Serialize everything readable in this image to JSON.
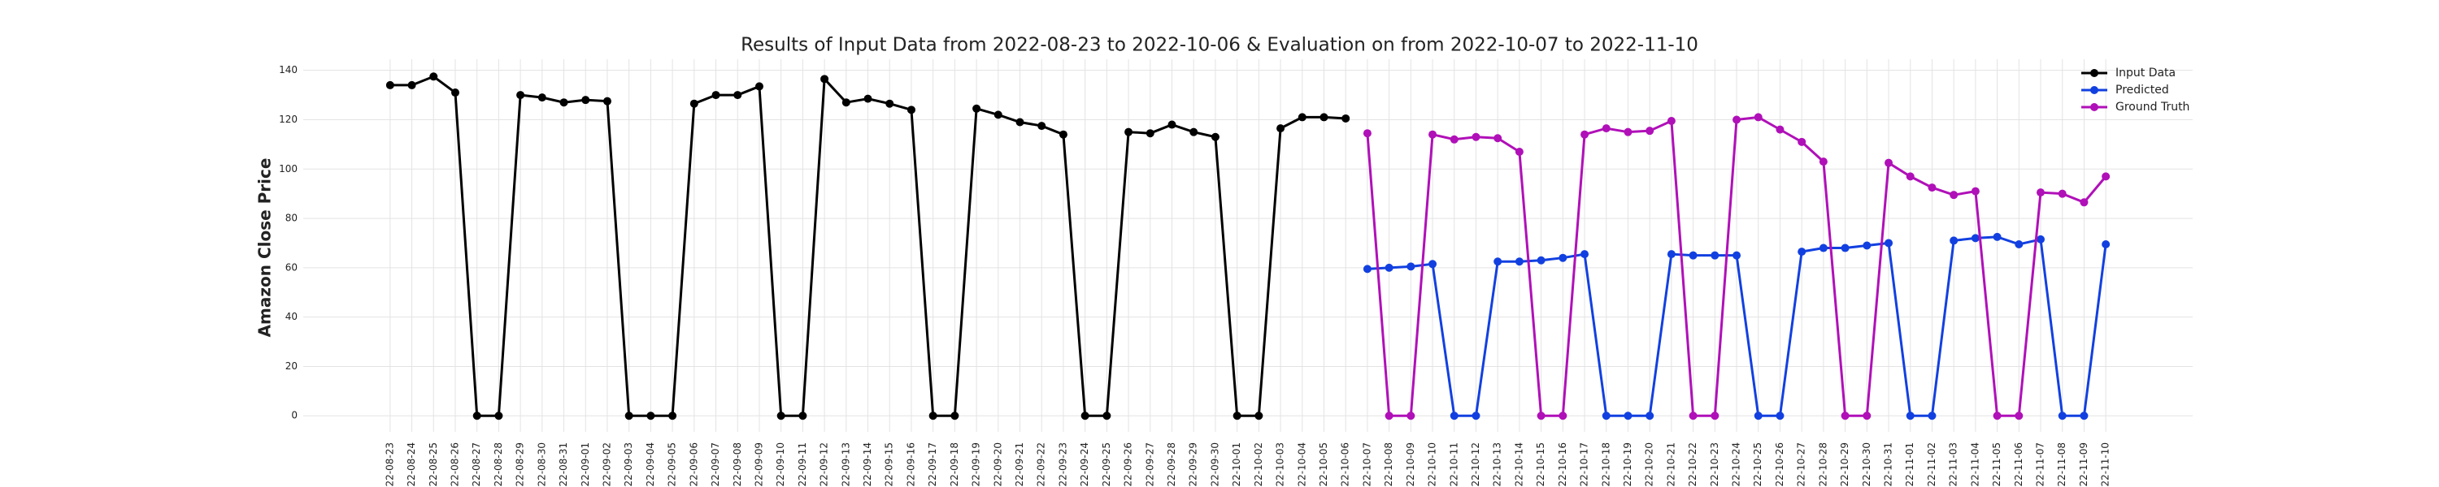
{
  "chart_data": {
    "type": "line",
    "title": "Results of Input Data from 2022-08-23 to 2022-10-06 & Evaluation on from 2022-10-07 to 2022-11-10",
    "y_label": "Amazon Close Price",
    "x": [
      "2022-08-23",
      "2022-08-24",
      "2022-08-25",
      "2022-08-26",
      "2022-08-27",
      "2022-08-28",
      "2022-08-29",
      "2022-08-30",
      "2022-08-31",
      "2022-09-01",
      "2022-09-02",
      "2022-09-03",
      "2022-09-04",
      "2022-09-05",
      "2022-09-06",
      "2022-09-07",
      "2022-09-08",
      "2022-09-09",
      "2022-09-10",
      "2022-09-11",
      "2022-09-12",
      "2022-09-13",
      "2022-09-14",
      "2022-09-15",
      "2022-09-16",
      "2022-09-17",
      "2022-09-18",
      "2022-09-19",
      "2022-09-20",
      "2022-09-21",
      "2022-09-22",
      "2022-09-23",
      "2022-09-24",
      "2022-09-25",
      "2022-09-26",
      "2022-09-27",
      "2022-09-28",
      "2022-09-29",
      "2022-09-30",
      "2022-10-01",
      "2022-10-02",
      "2022-10-03",
      "2022-10-04",
      "2022-10-05",
      "2022-10-06",
      "2022-10-07",
      "2022-10-08",
      "2022-10-09",
      "2022-10-10",
      "2022-10-11",
      "2022-10-12",
      "2022-10-13",
      "2022-10-14",
      "2022-10-15",
      "2022-10-16",
      "2022-10-17",
      "2022-10-18",
      "2022-10-19",
      "2022-10-20",
      "2022-10-21",
      "2022-10-22",
      "2022-10-23",
      "2022-10-24",
      "2022-10-25",
      "2022-10-26",
      "2022-10-27",
      "2022-10-28",
      "2022-10-29",
      "2022-10-30",
      "2022-10-31",
      "2022-11-01",
      "2022-11-02",
      "2022-11-03",
      "2022-11-04",
      "2022-11-05",
      "2022-11-06",
      "2022-11-07",
      "2022-11-08",
      "2022-11-09",
      "2022-11-10"
    ],
    "series": [
      {
        "name": "Input Data",
        "color": "#000000",
        "values": [
          134,
          134,
          137.5,
          131,
          0,
          0,
          130,
          129,
          127,
          128,
          127.5,
          0,
          0,
          0,
          126.5,
          130,
          130,
          133.5,
          0,
          0,
          136.5,
          127,
          128.5,
          126.5,
          124,
          0,
          0,
          124.5,
          122,
          119,
          117.5,
          114,
          0,
          0,
          115,
          114.5,
          118,
          115,
          113,
          0,
          0,
          116.5,
          121,
          121,
          120.5,
          null,
          null,
          null,
          null,
          null,
          null,
          null,
          null,
          null,
          null,
          null,
          null,
          null,
          null,
          null,
          null,
          null,
          null,
          null,
          null,
          null,
          null,
          null,
          null,
          null,
          null,
          null,
          null,
          null,
          null,
          null,
          null,
          null,
          null,
          null
        ]
      },
      {
        "name": "Predicted",
        "color": "#1240e0",
        "values": [
          null,
          null,
          null,
          null,
          null,
          null,
          null,
          null,
          null,
          null,
          null,
          null,
          null,
          null,
          null,
          null,
          null,
          null,
          null,
          null,
          null,
          null,
          null,
          null,
          null,
          null,
          null,
          null,
          null,
          null,
          null,
          null,
          null,
          null,
          null,
          null,
          null,
          null,
          null,
          null,
          null,
          null,
          null,
          null,
          null,
          59.5,
          60,
          60.5,
          61.5,
          0,
          0,
          62.5,
          62.5,
          63,
          64,
          65.5,
          0,
          0,
          0,
          65.5,
          65,
          65,
          65,
          0,
          0,
          66.5,
          68,
          68,
          69,
          70,
          0,
          0,
          71,
          72,
          72.5,
          69.5,
          71.5,
          0,
          0,
          69.5
        ]
      },
      {
        "name": "Ground Truth",
        "color": "#b010b8",
        "values": [
          null,
          null,
          null,
          null,
          null,
          null,
          null,
          null,
          null,
          null,
          null,
          null,
          null,
          null,
          null,
          null,
          null,
          null,
          null,
          null,
          null,
          null,
          null,
          null,
          null,
          null,
          null,
          null,
          null,
          null,
          null,
          null,
          null,
          null,
          null,
          null,
          null,
          null,
          null,
          null,
          null,
          null,
          null,
          null,
          null,
          114.5,
          0,
          0,
          114,
          112,
          113,
          112.5,
          107,
          0,
          0,
          114,
          116.5,
          115,
          115.5,
          119.5,
          0,
          0,
          120,
          121,
          116,
          111,
          103,
          0,
          0,
          102.5,
          97,
          92.5,
          89.5,
          91,
          0,
          0,
          90.5,
          90,
          86.5,
          97
        ]
      }
    ],
    "ylim": [
      -6.5,
      144.5
    ],
    "yticks": [
      0,
      20,
      40,
      60,
      80,
      100,
      120,
      140
    ],
    "grid": true,
    "legend": "upper right"
  }
}
